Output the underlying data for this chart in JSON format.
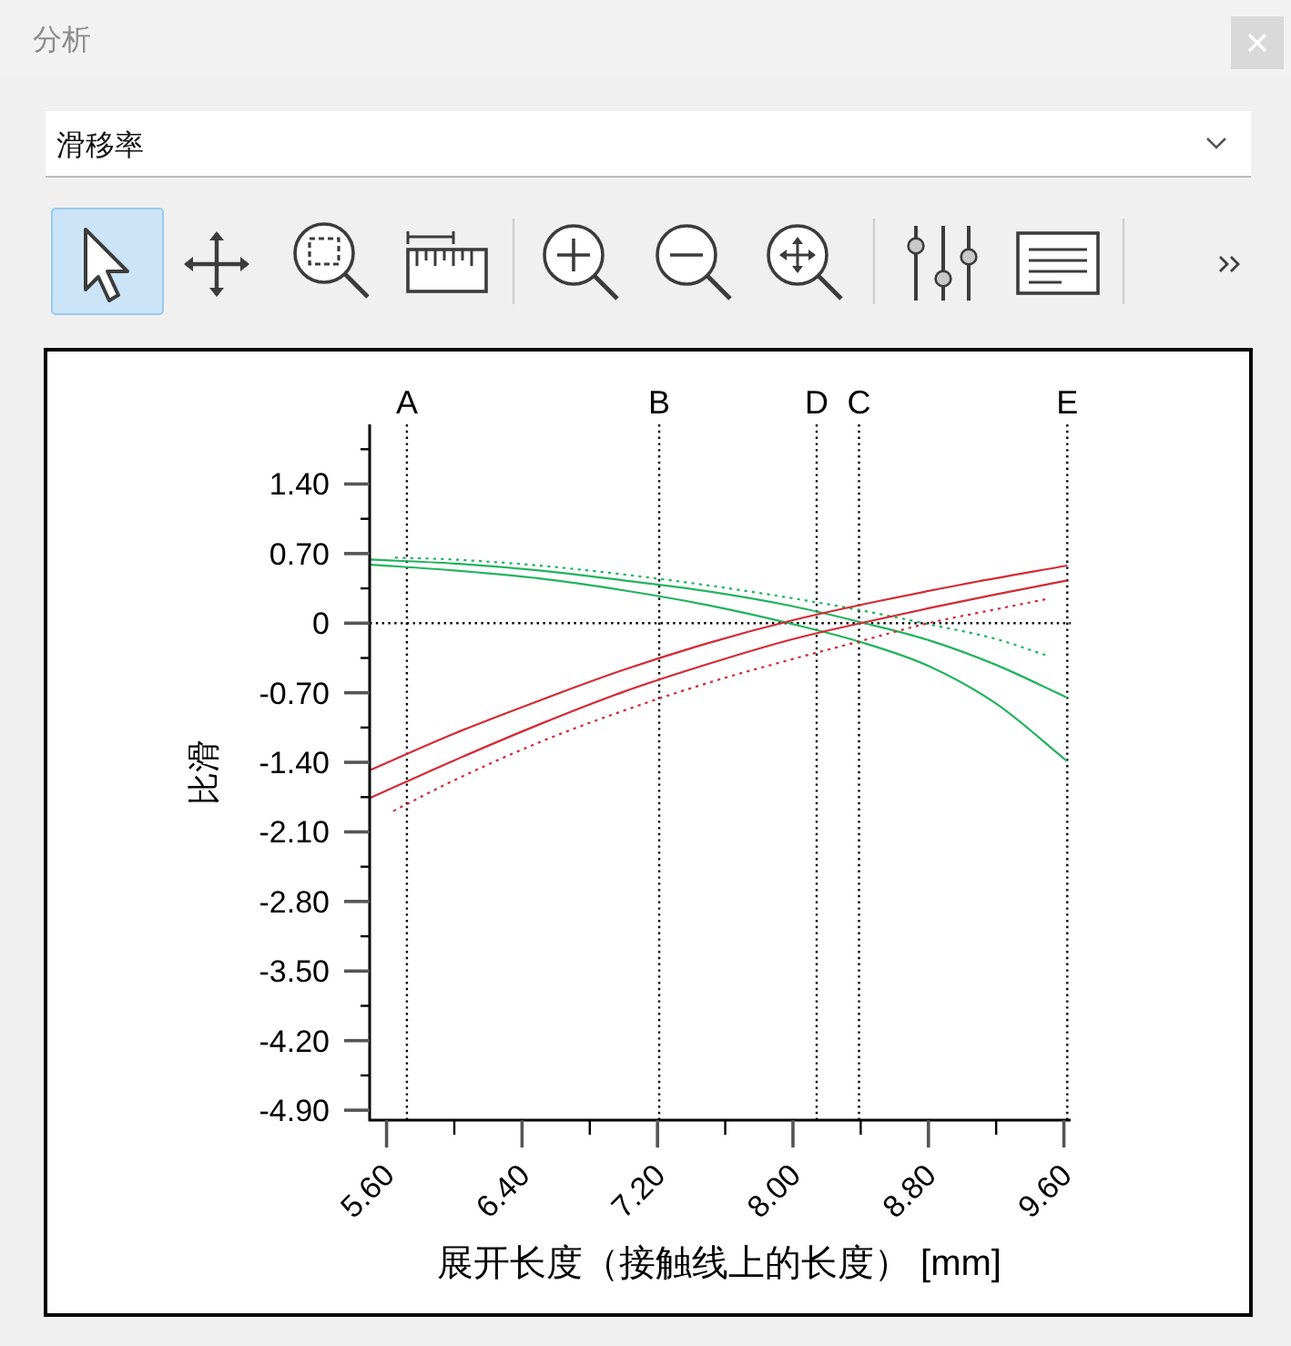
{
  "chart_data": {
    "type": "line",
    "title": "分析",
    "subtitle": "滑移率",
    "xlabel": "展开长度（接触线上的长度） [mm]",
    "ylabel": "比滑",
    "xlim": [
      5.5,
      9.64
    ],
    "ylim": [
      -5.0,
      2.0
    ],
    "xticks": [
      {
        "value": 5.6,
        "label": "5.60"
      },
      {
        "value": 6.0,
        "label": null
      },
      {
        "value": 6.4,
        "label": "6.40"
      },
      {
        "value": 6.8,
        "label": null
      },
      {
        "value": 7.2,
        "label": "7.20"
      },
      {
        "value": 7.6,
        "label": null
      },
      {
        "value": 8.0,
        "label": "8.00"
      },
      {
        "value": 8.4,
        "label": null
      },
      {
        "value": 8.8,
        "label": "8.80"
      },
      {
        "value": 9.2,
        "label": null
      },
      {
        "value": 9.6,
        "label": "9.60"
      }
    ],
    "yticks": [
      {
        "value": -4.9,
        "label": "-4.90"
      },
      {
        "value": -4.55,
        "label": null
      },
      {
        "value": -4.2,
        "label": "-4.20"
      },
      {
        "value": -3.85,
        "label": null
      },
      {
        "value": -3.5,
        "label": "-3.50"
      },
      {
        "value": -3.15,
        "label": null
      },
      {
        "value": -2.8,
        "label": "-2.80"
      },
      {
        "value": -2.45,
        "label": null
      },
      {
        "value": -2.1,
        "label": "-2.10"
      },
      {
        "value": -1.75,
        "label": null
      },
      {
        "value": -1.4,
        "label": "-1.40"
      },
      {
        "value": -1.05,
        "label": null
      },
      {
        "value": -0.7,
        "label": "-0.70"
      },
      {
        "value": -0.35,
        "label": null
      },
      0,
      {
        "value": 0.35,
        "label": null
      },
      {
        "value": 0.7,
        "label": "0.70"
      },
      {
        "value": 1.05,
        "label": null
      },
      {
        "value": 1.4,
        "label": "1.40"
      },
      {
        "value": 1.75,
        "label": null
      }
    ],
    "grid": false,
    "series": [
      {
        "color": "#22b35e",
        "line_style": "solid",
        "x": [
          5.5,
          6.0,
          6.5,
          7.0,
          7.5,
          8.0,
          8.4,
          8.8,
          9.2,
          9.62
        ],
        "values": [
          0.64,
          0.6,
          0.53,
          0.43,
          0.32,
          0.17,
          0.01,
          -0.17,
          -0.42,
          -0.75
        ]
      },
      {
        "color": "#22b35e",
        "line_style": "solid",
        "x": [
          5.5,
          6.0,
          6.5,
          7.0,
          7.5,
          8.0,
          8.4,
          8.8,
          9.2,
          9.62
        ],
        "values": [
          0.59,
          0.53,
          0.45,
          0.33,
          0.18,
          -0.01,
          -0.19,
          -0.43,
          -0.81,
          -1.39
        ]
      },
      {
        "color": "#22b35e",
        "line_style": "dotted",
        "x": [
          5.65,
          6.0,
          6.5,
          7.0,
          7.5,
          8.0,
          8.4,
          8.8,
          9.2,
          9.49
        ],
        "values": [
          0.66,
          0.64,
          0.58,
          0.49,
          0.38,
          0.25,
          0.13,
          -0.01,
          -0.16,
          -0.32
        ]
      },
      {
        "color": "#d22b35",
        "line_style": "solid",
        "x": [
          5.5,
          6.0,
          6.5,
          7.0,
          7.5,
          8.0,
          8.5,
          9.0,
          9.62
        ],
        "values": [
          -1.48,
          -1.11,
          -0.78,
          -0.47,
          -0.2,
          0.03,
          0.22,
          0.39,
          0.58
        ]
      },
      {
        "color": "#d22b35",
        "line_style": "solid",
        "x": [
          5.5,
          6.0,
          6.5,
          7.0,
          7.5,
          8.0,
          8.4,
          8.8,
          9.2,
          9.62
        ],
        "values": [
          -1.76,
          -1.38,
          -1.02,
          -0.69,
          -0.41,
          -0.16,
          0.0,
          0.15,
          0.29,
          0.43
        ]
      },
      {
        "color": "#d22b35",
        "line_style": "dotted",
        "x": [
          5.64,
          6.0,
          6.5,
          7.0,
          7.5,
          8.0,
          8.4,
          8.8,
          9.2,
          9.49
        ],
        "values": [
          -1.89,
          -1.58,
          -1.2,
          -0.88,
          -0.6,
          -0.36,
          -0.18,
          0.0,
          0.14,
          0.24
        ]
      }
    ],
    "ref_lines": [
      {
        "axis": "x",
        "value": 5.72,
        "label": "A",
        "color": "#000000",
        "line_style": "dotted"
      },
      {
        "axis": "x",
        "value": 7.21,
        "label": "B",
        "color": "#000000",
        "line_style": "dotted"
      },
      {
        "axis": "x",
        "value": 8.14,
        "label": "D",
        "color": "#000000",
        "line_style": "dotted"
      },
      {
        "axis": "x",
        "value": 8.39,
        "label": "C",
        "color": "#000000",
        "line_style": "dotted"
      },
      {
        "axis": "x",
        "value": 9.62,
        "label": "E",
        "color": "#000000",
        "line_style": "dotted"
      },
      {
        "axis": "y",
        "value": 0,
        "color": "#000000",
        "line_style": "dotted"
      }
    ]
  }
}
